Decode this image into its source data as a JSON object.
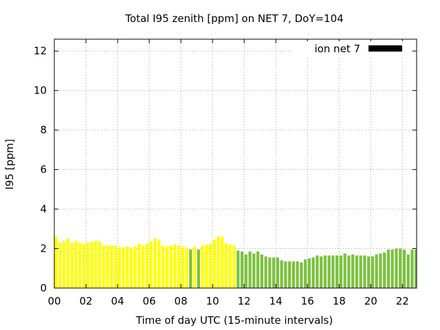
{
  "chart_data": {
    "type": "bar",
    "title": "Total I95 zenith [ppm] on NET 7, DoY=104",
    "xlabel": "Time of day UTC (15-minute intervals)",
    "ylabel": "I95 [ppm]",
    "xlim": [
      0,
      22.9
    ],
    "ylim": [
      0,
      12.6
    ],
    "x_ticks": [
      0,
      2,
      4,
      6,
      8,
      10,
      12,
      14,
      16,
      18,
      20,
      22
    ],
    "x_tick_labels": [
      "00",
      "02",
      "04",
      "06",
      "08",
      "10",
      "12",
      "14",
      "16",
      "18",
      "20",
      "22"
    ],
    "y_ticks": [
      0,
      2,
      4,
      6,
      8,
      10,
      12
    ],
    "y_tick_labels": [
      "0",
      "2",
      "4",
      "6",
      "8",
      "10",
      "12"
    ],
    "grid": true,
    "legend": {
      "label": "ion net 7",
      "color": "#000000",
      "position": "top-right"
    },
    "colors": {
      "early": "#ffff00",
      "late": "#7dc142",
      "frame": "#000000",
      "grid": "#a0a0a0"
    },
    "bar_interval_hours": 0.25,
    "bar_width_fraction": 0.75,
    "x": [
      0.0,
      0.25,
      0.5,
      0.75,
      1.0,
      1.25,
      1.5,
      1.75,
      2.0,
      2.25,
      2.5,
      2.75,
      3.0,
      3.25,
      3.5,
      3.75,
      4.0,
      4.25,
      4.5,
      4.75,
      5.0,
      5.25,
      5.5,
      5.75,
      6.0,
      6.25,
      6.5,
      6.75,
      7.0,
      7.25,
      7.5,
      7.75,
      8.0,
      8.25,
      8.5,
      8.75,
      9.0,
      9.25,
      9.5,
      9.75,
      10.0,
      10.25,
      10.5,
      10.75,
      11.0,
      11.25,
      11.5,
      11.75,
      12.0,
      12.25,
      12.5,
      12.75,
      13.0,
      13.25,
      13.5,
      13.75,
      14.0,
      14.25,
      14.5,
      14.75,
      15.0,
      15.25,
      15.5,
      15.75,
      16.0,
      16.25,
      16.5,
      16.75,
      17.0,
      17.25,
      17.5,
      17.75,
      18.0,
      18.25,
      18.5,
      18.75,
      19.0,
      19.25,
      19.5,
      19.75,
      20.0,
      20.25,
      20.5,
      20.75,
      21.0,
      21.25,
      21.5,
      21.75,
      22.0,
      22.25,
      22.5,
      22.75
    ],
    "values": [
      2.6,
      2.3,
      2.4,
      2.5,
      2.3,
      2.4,
      2.3,
      2.25,
      2.3,
      2.35,
      2.4,
      2.35,
      2.15,
      2.15,
      2.15,
      2.15,
      2.05,
      2.05,
      2.1,
      2.05,
      2.1,
      2.25,
      2.15,
      2.25,
      2.35,
      2.5,
      2.45,
      2.15,
      2.1,
      2.15,
      2.2,
      2.15,
      2.1,
      2.05,
      1.95,
      2.1,
      1.95,
      2.15,
      2.2,
      2.25,
      2.45,
      2.6,
      2.6,
      2.25,
      2.2,
      2.15,
      1.9,
      1.85,
      1.7,
      1.85,
      1.75,
      1.85,
      1.7,
      1.6,
      1.55,
      1.55,
      1.55,
      1.4,
      1.35,
      1.35,
      1.35,
      1.35,
      1.3,
      1.45,
      1.5,
      1.55,
      1.65,
      1.6,
      1.65,
      1.65,
      1.65,
      1.65,
      1.65,
      1.75,
      1.65,
      1.7,
      1.65,
      1.65,
      1.65,
      1.6,
      1.6,
      1.7,
      1.75,
      1.8,
      1.95,
      1.95,
      2.0,
      2.0,
      1.95,
      1.7,
      1.95,
      1.95
    ],
    "bar_groups": [
      "early",
      "early",
      "early",
      "early",
      "early",
      "early",
      "early",
      "early",
      "early",
      "early",
      "early",
      "early",
      "early",
      "early",
      "early",
      "early",
      "early",
      "early",
      "early",
      "early",
      "early",
      "early",
      "early",
      "early",
      "early",
      "early",
      "early",
      "early",
      "early",
      "early",
      "early",
      "early",
      "early",
      "early",
      "late",
      "early",
      "late",
      "early",
      "early",
      "early",
      "early",
      "early",
      "early",
      "early",
      "early",
      "early",
      "late",
      "late",
      "late",
      "late",
      "late",
      "late",
      "late",
      "late",
      "late",
      "late",
      "late",
      "late",
      "late",
      "late",
      "late",
      "late",
      "late",
      "late",
      "late",
      "late",
      "late",
      "late",
      "late",
      "late",
      "late",
      "late",
      "late",
      "late",
      "late",
      "late",
      "late",
      "late",
      "late",
      "late",
      "late",
      "late",
      "late",
      "late",
      "late",
      "late",
      "late",
      "late",
      "late",
      "late",
      "late",
      "late"
    ]
  }
}
